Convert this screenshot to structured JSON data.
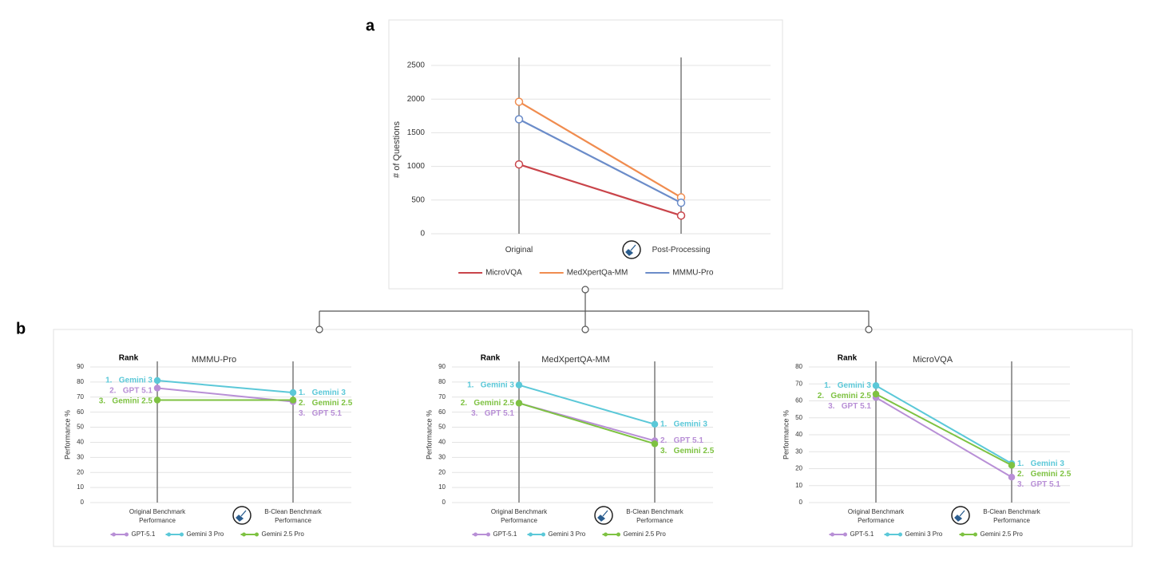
{
  "panels": [
    "a",
    "b"
  ],
  "chart_data": [
    {
      "type": "line",
      "ylabel": "# of Questions",
      "categories": [
        "Original",
        "Post-Processing"
      ],
      "ylim": [
        0,
        2500
      ],
      "yticks": [
        0,
        500,
        1000,
        1500,
        2000,
        2500
      ],
      "grid": true,
      "markers": "hollow",
      "series": [
        {
          "name": "MicroVQA",
          "color": "#c9444a",
          "values": [
            1030,
            270
          ]
        },
        {
          "name": "MedXpertQa-MM",
          "color": "#f08c4f",
          "values": [
            1960,
            540
          ]
        },
        {
          "name": "MMMU-Pro",
          "color": "#6b8cc9",
          "values": [
            1700,
            460
          ]
        }
      ]
    },
    {
      "type": "line",
      "title": "MMMU-Pro",
      "ylabel": "Performance %",
      "rank_title": "Rank",
      "categories": [
        "Original Benchmark Performance",
        "B-Clean Benchmark Performance"
      ],
      "ylim": [
        0,
        90
      ],
      "yticks": [
        0,
        10,
        20,
        30,
        40,
        50,
        60,
        70,
        80,
        90
      ],
      "grid": true,
      "markers": "filled",
      "series": [
        {
          "name": "GPT-5.1",
          "color": "#b88fd6",
          "values": [
            76,
            67
          ]
        },
        {
          "name": "Gemini 3 Pro",
          "color": "#5bc8d8",
          "values": [
            81,
            73
          ]
        },
        {
          "name": "Gemini 2.5 Pro",
          "color": "#7ec242",
          "values": [
            68,
            68
          ]
        }
      ],
      "rank_left": [
        {
          "text": "1.   Gemini 3",
          "color": "#5bc8d8"
        },
        {
          "text": "2.   GPT 5.1",
          "color": "#b88fd6"
        },
        {
          "text": "3.   Gemini 2.5",
          "color": "#7ec242"
        }
      ],
      "rank_right": [
        {
          "text": "1.   Gemini 3",
          "color": "#5bc8d8"
        },
        {
          "text": "2.   Gemini 2.5",
          "color": "#7ec242"
        },
        {
          "text": "3.   GPT 5.1",
          "color": "#b88fd6"
        }
      ]
    },
    {
      "type": "line",
      "title": "MedXpertQA-MM",
      "ylabel": "Performance %",
      "rank_title": "Rank",
      "categories": [
        "Original Benchmark Performance",
        "B-Clean Benchmark Performance"
      ],
      "ylim": [
        0,
        90
      ],
      "yticks": [
        0,
        10,
        20,
        30,
        40,
        50,
        60,
        70,
        80,
        90
      ],
      "grid": true,
      "markers": "filled",
      "series": [
        {
          "name": "GPT-5.1",
          "color": "#b88fd6",
          "values": [
            66,
            41
          ]
        },
        {
          "name": "Gemini 3 Pro",
          "color": "#5bc8d8",
          "values": [
            78,
            52
          ]
        },
        {
          "name": "Gemini 2.5 Pro",
          "color": "#7ec242",
          "values": [
            66,
            39
          ]
        }
      ],
      "rank_left": [
        {
          "text": "1.   Gemini 3",
          "color": "#5bc8d8"
        },
        {
          "text": "2.   Gemini 2.5",
          "color": "#7ec242"
        },
        {
          "text": "3.   GPT 5.1",
          "color": "#b88fd6"
        }
      ],
      "rank_right": [
        {
          "text": "1.   Gemini 3",
          "color": "#5bc8d8"
        },
        {
          "text": "2.   GPT 5.1",
          "color": "#b88fd6"
        },
        {
          "text": "3.   Gemini 2.5",
          "color": "#7ec242"
        }
      ]
    },
    {
      "type": "line",
      "title": "MicroVQA",
      "ylabel": "Performance %",
      "rank_title": "Rank",
      "categories": [
        "Original Benchmark Performance",
        "B-Clean Benchmark Performance"
      ],
      "ylim": [
        0,
        80
      ],
      "yticks": [
        0,
        10,
        20,
        30,
        40,
        50,
        60,
        70,
        80
      ],
      "grid": true,
      "markers": "filled",
      "series": [
        {
          "name": "GPT-5.1",
          "color": "#b88fd6",
          "values": [
            62,
            15
          ]
        },
        {
          "name": "Gemini 3 Pro",
          "color": "#5bc8d8",
          "values": [
            69,
            23
          ]
        },
        {
          "name": "Gemini 2.5 Pro",
          "color": "#7ec242",
          "values": [
            64,
            22
          ]
        }
      ],
      "rank_left": [
        {
          "text": "1.   Gemini 3",
          "color": "#5bc8d8"
        },
        {
          "text": "2.   Gemini 2.5",
          "color": "#7ec242"
        },
        {
          "text": "3.   GPT 5.1",
          "color": "#b88fd6"
        }
      ],
      "rank_right": [
        {
          "text": "1.   Gemini 3",
          "color": "#5bc8d8"
        },
        {
          "text": "2.   Gemini 2.5",
          "color": "#7ec242"
        },
        {
          "text": "3.   GPT 5.1",
          "color": "#b88fd6"
        }
      ]
    }
  ]
}
